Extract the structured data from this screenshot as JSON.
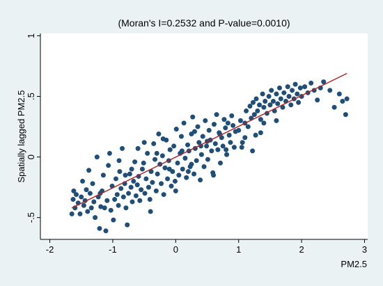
{
  "chart_data": {
    "type": "scatter",
    "title": "(Moran's I=0.2532 and P-value=0.0010)",
    "xlabel": "PM2.5",
    "ylabel": "Spatially lagged PM2.5",
    "xlim": [
      -2.15,
      3.05
    ],
    "ylim": [
      -0.68,
      1.02
    ],
    "xticks": [
      -2,
      -1,
      0,
      1,
      2,
      3
    ],
    "yticks": [
      -0.5,
      0,
      0.5,
      1
    ],
    "xtick_labels": [
      "-2",
      "-1",
      "0",
      "1",
      "2",
      "3"
    ],
    "ytick_labels": [
      "-.5",
      "0",
      ".5",
      "1"
    ],
    "grid": false,
    "legend": "none",
    "colors": {
      "background": "#EAF2F3",
      "plot_area": "#FFFFFF",
      "points": "#1F4E79",
      "fit_line": "#B22222"
    },
    "fit_line": {
      "x": [
        -1.65,
        2.72
      ],
      "y": [
        -0.42,
        0.69
      ]
    },
    "points": [
      [
        -1.65,
        -0.47
      ],
      [
        -1.63,
        -0.35
      ],
      [
        -1.62,
        -0.28
      ],
      [
        -1.6,
        -0.42
      ],
      [
        -1.58,
        -0.31
      ],
      [
        -1.55,
        -0.38
      ],
      [
        -1.52,
        -0.47
      ],
      [
        -1.5,
        -0.33
      ],
      [
        -1.48,
        -0.2
      ],
      [
        -1.46,
        -0.4
      ],
      [
        -1.44,
        -0.36
      ],
      [
        -1.42,
        -0.27
      ],
      [
        -1.4,
        -0.45
      ],
      [
        -1.38,
        -0.11
      ],
      [
        -1.36,
        -0.3
      ],
      [
        -1.34,
        -0.42
      ],
      [
        -1.32,
        -0.22
      ],
      [
        -1.3,
        -0.37
      ],
      [
        -1.28,
        -0.5
      ],
      [
        -1.25,
        0
      ],
      [
        -1.23,
        -0.33
      ],
      [
        -1.21,
        -0.59
      ],
      [
        -1.19,
        -0.41
      ],
      [
        -1.17,
        -0.28
      ],
      [
        -1.15,
        -0.15
      ],
      [
        -1.13,
        -0.42
      ],
      [
        -1.11,
        -0.61
      ],
      [
        -1.09,
        -0.36
      ],
      [
        -1.07,
        -0.07
      ],
      [
        -1.05,
        0.03
      ],
      [
        -1.03,
        -0.44
      ],
      [
        -1.01,
        -0.24
      ],
      [
        -0.99,
        -0.52
      ],
      [
        -0.97,
        -0.35
      ],
      [
        -0.95,
        -0.18
      ],
      [
        -0.93,
        -0.31
      ],
      [
        -0.91,
        -0.4
      ],
      [
        -0.89,
        -0.12
      ],
      [
        -0.87,
        -0.26
      ],
      [
        -0.85,
        0.07
      ],
      [
        -0.83,
        -0.33
      ],
      [
        -0.81,
        -0.22
      ],
      [
        -0.79,
        -0.42
      ],
      [
        -0.77,
        -0.56
      ],
      [
        -0.75,
        -0.3
      ],
      [
        -0.73,
        -0.14
      ],
      [
        -0.71,
        -0.25
      ],
      [
        -0.69,
        -0.37
      ],
      [
        -0.67,
        -0.2
      ],
      [
        -0.65,
        -0.04
      ],
      [
        -0.63,
        -0.32
      ],
      [
        -0.61,
        -0.23
      ],
      [
        -0.59,
        -0.16
      ],
      [
        -0.57,
        -0.36
      ],
      [
        -0.55,
        -0.27
      ],
      [
        -0.53,
        -0.1
      ],
      [
        -0.51,
        -0.05
      ],
      [
        -0.49,
        -0.3
      ],
      [
        -0.47,
        -0.18
      ],
      [
        -0.45,
        0.03
      ],
      [
        -0.43,
        -0.25
      ],
      [
        -0.41,
        -0.35
      ],
      [
        -0.39,
        -0.12
      ],
      [
        -0.37,
        -0.21
      ],
      [
        -0.35,
        0.11
      ],
      [
        -0.33,
        -0.02
      ],
      [
        -0.31,
        -0.28
      ],
      [
        -0.29,
        -0.14
      ],
      [
        -0.27,
        0.19
      ],
      [
        -0.25,
        -0.06
      ],
      [
        -0.23,
        -0.22
      ],
      [
        -0.21,
        0.01
      ],
      [
        -0.19,
        -0.31
      ],
      [
        -0.17,
        -0.09
      ],
      [
        -0.15,
        0.14
      ],
      [
        -0.13,
        -0.18
      ],
      [
        -0.11,
        -0.03
      ],
      [
        -0.09,
        0.06
      ],
      [
        -0.07,
        -0.24
      ],
      [
        -0.05,
        -0.12
      ],
      [
        -0.03,
        0.09
      ],
      [
        -0.01,
        -0.2
      ],
      [
        0.01,
        0.23
      ],
      [
        0.03,
        -0.05
      ],
      [
        0.05,
        -0.15
      ],
      [
        0.07,
        0.03
      ],
      [
        0.09,
        0.17
      ],
      [
        0.11,
        -0.1
      ],
      [
        0.13,
        0.28
      ],
      [
        0.15,
        -0.01
      ],
      [
        0.17,
        -0.17
      ],
      [
        0.19,
        0.1
      ],
      [
        0.21,
        0.05
      ],
      [
        0.23,
        -0.08
      ],
      [
        0.25,
        0.19
      ],
      [
        0.27,
        0.33
      ],
      [
        0.29,
        -0.14
      ],
      [
        0.31,
        0.07
      ],
      [
        0.33,
        -0.03
      ],
      [
        0.35,
        0.25
      ],
      [
        0.37,
        0.12
      ],
      [
        0.39,
        -0.19
      ],
      [
        0.41,
        0.02
      ],
      [
        0.43,
        0.17
      ],
      [
        0.45,
        -0.08
      ],
      [
        0.47,
        0.3
      ],
      [
        0.49,
        0.09
      ],
      [
        0.51,
        -0.02
      ],
      [
        0.53,
        0.22
      ],
      [
        0.55,
        0.14
      ],
      [
        0.57,
        0.05
      ],
      [
        0.59,
        -0.13
      ],
      [
        0.61,
        0.27
      ],
      [
        0.63,
        0.11
      ],
      [
        0.65,
        0.35
      ],
      [
        0.67,
        0.06
      ],
      [
        0.69,
        0.2
      ],
      [
        0.71,
        -0.05
      ],
      [
        0.73,
        0.16
      ],
      [
        0.75,
        0.09
      ],
      [
        0.77,
        0.31
      ],
      [
        0.79,
        0.24
      ],
      [
        0.81,
        0.02
      ],
      [
        0.83,
        0.28
      ],
      [
        0.85,
        0.18
      ],
      [
        0.87,
        0.12
      ],
      [
        0.89,
        0.34
      ],
      [
        0.91,
        0.26
      ],
      [
        0.93,
        0.08
      ],
      [
        0.95,
        0.21
      ],
      [
        -0.9,
        -0.03
      ],
      [
        -0.6,
        0.07
      ],
      [
        -0.4,
        -0.45
      ],
      [
        -0.2,
        0.15
      ],
      [
        0,
        -0.28
      ],
      [
        0.2,
        -0.12
      ],
      [
        0.4,
        0.09
      ],
      [
        0.6,
        -0.15
      ],
      [
        0.8,
        0.06
      ],
      [
        -1.2,
        -0.3
      ],
      [
        -0.7,
        -0.1
      ],
      [
        -0.3,
        0.03
      ],
      [
        0.1,
        0.05
      ],
      [
        0.3,
        0.21
      ],
      [
        0.5,
        0.13
      ],
      [
        0.7,
        0.19
      ],
      [
        -0.8,
        -0.15
      ],
      [
        -0.5,
        0.12
      ],
      [
        -0.1,
        -0.1
      ],
      [
        0.25,
        -0.06
      ],
      [
        1.0,
        0.22
      ],
      [
        1.03,
        0.3
      ],
      [
        1.06,
        0.12
      ],
      [
        1.1,
        0.28
      ],
      [
        1.12,
        0.38
      ],
      [
        1.15,
        0.25
      ],
      [
        1.18,
        0.42
      ],
      [
        1.2,
        0.32
      ],
      [
        1.23,
        0.45
      ],
      [
        1.25,
        0.35
      ],
      [
        1.28,
        0.48
      ],
      [
        1.3,
        0.38
      ],
      [
        1.33,
        0.43
      ],
      [
        1.35,
        0.31
      ],
      [
        1.38,
        0.52
      ],
      [
        1.4,
        0.41
      ],
      [
        1.42,
        0.46
      ],
      [
        1.45,
        0.36
      ],
      [
        1.48,
        0.5
      ],
      [
        1.5,
        0.43
      ],
      [
        1.52,
        0.55
      ],
      [
        1.55,
        0.46
      ],
      [
        1.57,
        0.38
      ],
      [
        1.6,
        0.52
      ],
      [
        1.62,
        0.44
      ],
      [
        1.65,
        0.57
      ],
      [
        1.67,
        0.48
      ],
      [
        1.7,
        0.41
      ],
      [
        1.72,
        0.53
      ],
      [
        1.75,
        0.46
      ],
      [
        1.78,
        0.58
      ],
      [
        1.8,
        0.5
      ],
      [
        1.83,
        0.43
      ],
      [
        1.85,
        0.55
      ],
      [
        1.88,
        0.48
      ],
      [
        1.9,
        0.6
      ],
      [
        1.93,
        0.52
      ],
      [
        1.95,
        0.45
      ],
      [
        1.98,
        0.57
      ],
      [
        2.0,
        0.5
      ],
      [
        2.05,
        0.58
      ],
      [
        2.1,
        0.53
      ],
      [
        2.15,
        0.61
      ],
      [
        2.2,
        0.55
      ],
      [
        2.25,
        0.47
      ],
      [
        2.3,
        0.57
      ],
      [
        2.35,
        0.62
      ],
      [
        2.45,
        0.55
      ],
      [
        2.52,
        0.41
      ],
      [
        2.6,
        0.52
      ],
      [
        2.65,
        0.46
      ],
      [
        2.7,
        0.35
      ],
      [
        2.72,
        0.48
      ],
      [
        1.27,
        0.18
      ],
      [
        1.22,
        0.05
      ],
      [
        1.1,
        0.16
      ],
      [
        1.4,
        0.28
      ],
      [
        1.6,
        0.3
      ],
      [
        1.35,
        0.2
      ],
      [
        1.05,
        0.08
      ]
    ]
  }
}
